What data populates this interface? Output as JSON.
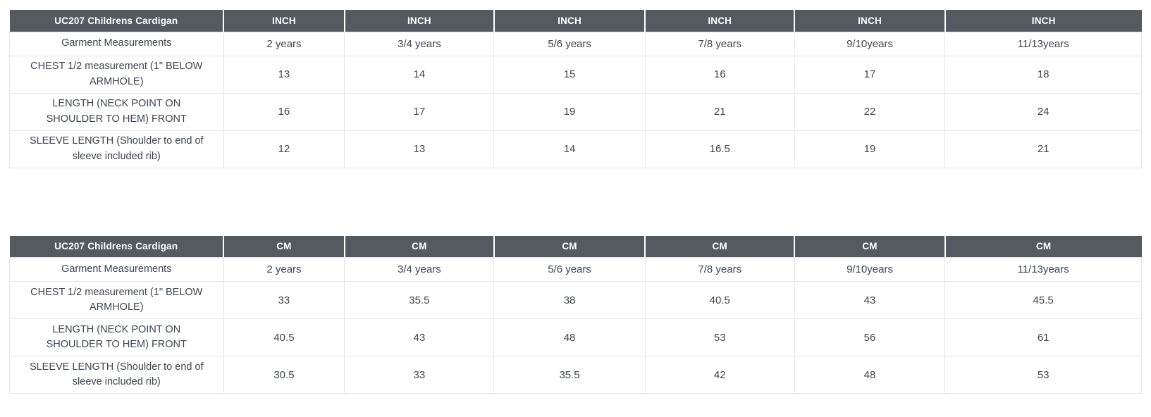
{
  "colors": {
    "header_bg": "#555a61",
    "header_text": "#ffffff",
    "body_text": "#3d4450",
    "cell_border": "#e3e4ee"
  },
  "tables": [
    {
      "title": "UC207 Childrens Cardigan",
      "subtitle": "Garment Measurements",
      "unit": "INCH",
      "units": [
        "INCH",
        "INCH",
        "INCH",
        "INCH",
        "INCH",
        "INCH"
      ],
      "sizes": [
        "2 years",
        "3/4 years",
        "5/6 years",
        "7/8 years",
        "9/10years",
        "11/13years"
      ],
      "rows": [
        {
          "label": "CHEST 1/2 measurement (1\" BELOW ARMHOLE)",
          "values": [
            "13",
            "14",
            "15",
            "16",
            "17",
            "18"
          ]
        },
        {
          "label": "LENGTH (NECK POINT ON SHOULDER TO HEM) FRONT",
          "values": [
            "16",
            "17",
            "19",
            "21",
            "22",
            "24"
          ]
        },
        {
          "label": "SLEEVE LENGTH (Shoulder to end of sleeve included rib)",
          "values": [
            "12",
            "13",
            "14",
            "16.5",
            "19",
            "21"
          ]
        }
      ]
    },
    {
      "title": "UC207 Childrens Cardigan",
      "subtitle": "Garment Measurements",
      "unit": "CM",
      "units": [
        "CM",
        "CM",
        "CM",
        "CM",
        "CM",
        "CM"
      ],
      "sizes": [
        "2 years",
        "3/4 years",
        "5/6 years",
        "7/8 years",
        "9/10years",
        "11/13years"
      ],
      "rows": [
        {
          "label": "CHEST 1/2 measurement (1\" BELOW ARMHOLE)",
          "values": [
            "33",
            "35.5",
            "38",
            "40.5",
            "43",
            "45.5"
          ]
        },
        {
          "label": "LENGTH (NECK POINT ON SHOULDER TO HEM) FRONT",
          "values": [
            "40.5",
            "43",
            "48",
            "53",
            "56",
            "61"
          ]
        },
        {
          "label": "SLEEVE LENGTH (Shoulder to end of sleeve included rib)",
          "values": [
            "30.5",
            "33",
            "35.5",
            "42",
            "48",
            "53"
          ]
        }
      ]
    }
  ]
}
